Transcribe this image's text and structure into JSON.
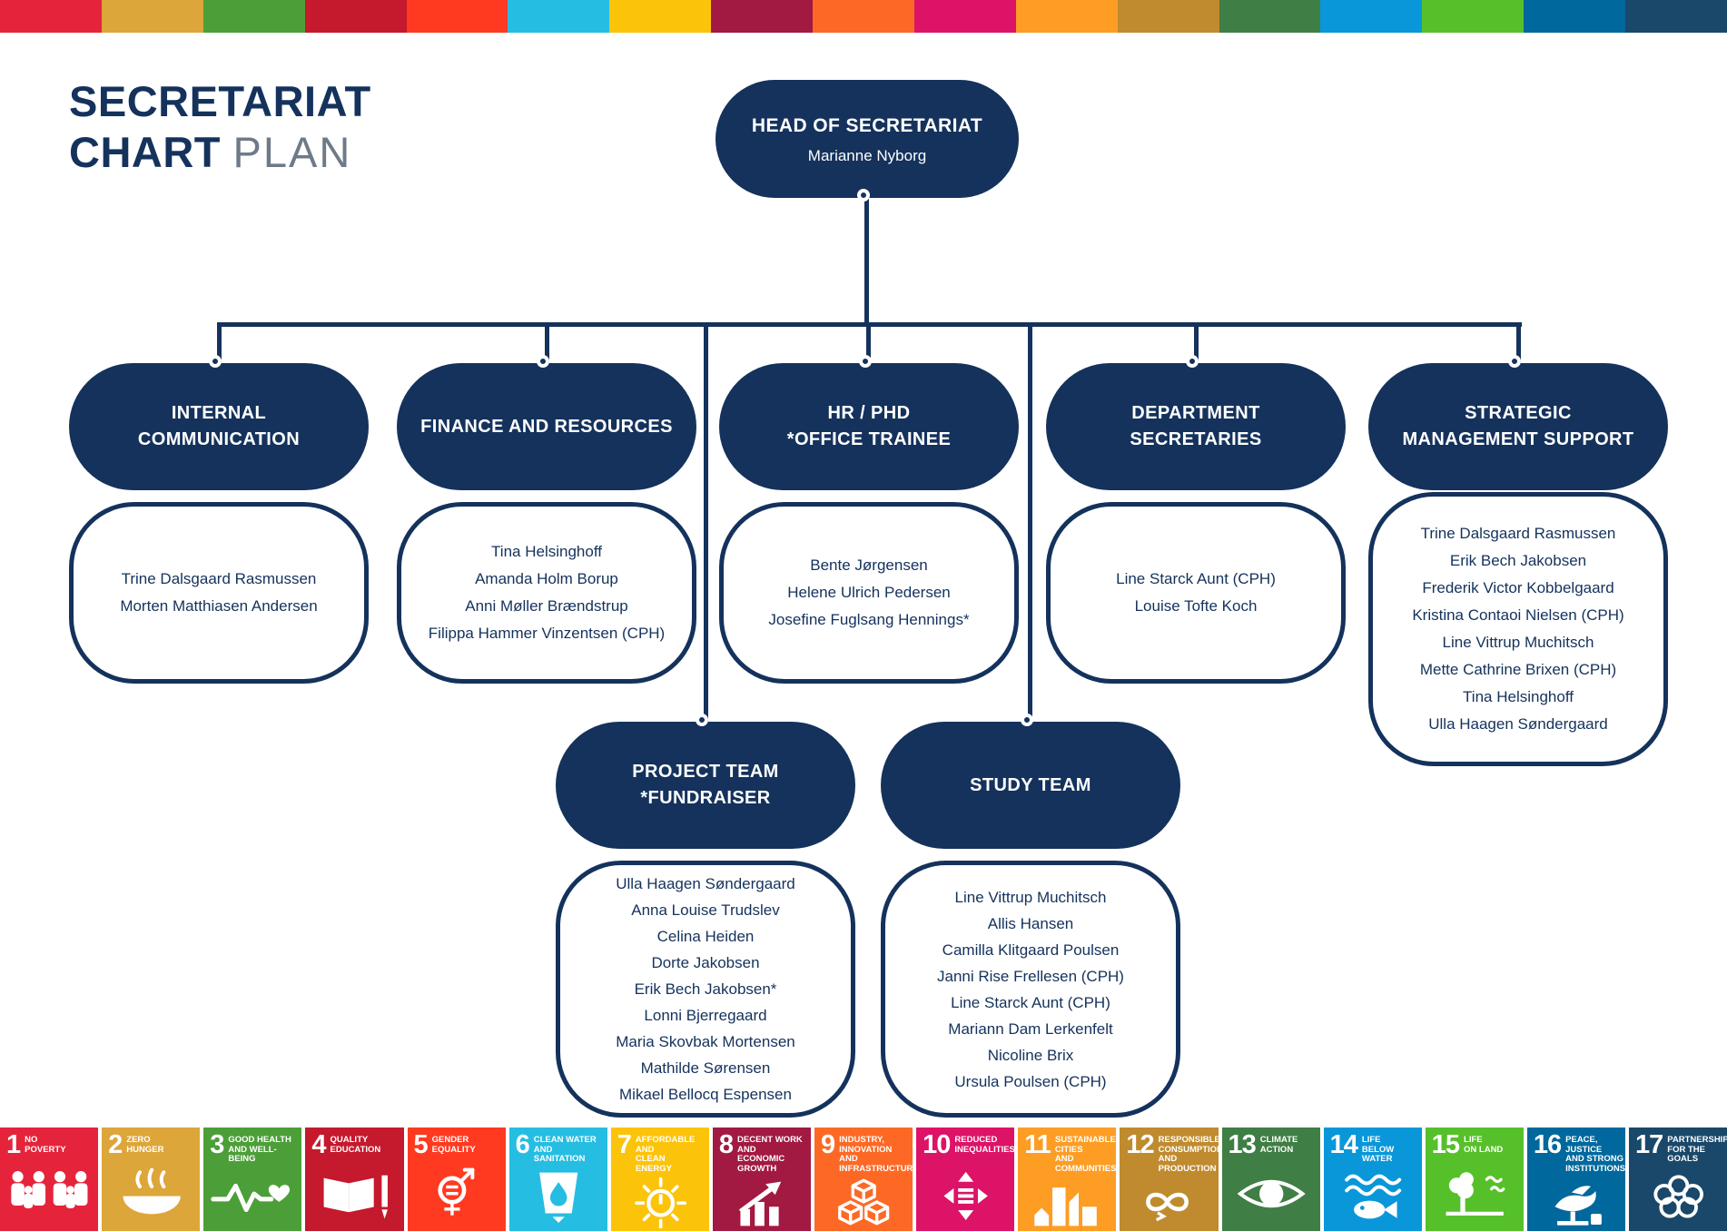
{
  "colors": {
    "navy": "#14325C",
    "title_light": "#6E7A87"
  },
  "title": {
    "strong_line1": "SECRETARIAT",
    "strong_line2": "CHART",
    "light": "PLAN"
  },
  "org": {
    "head": {
      "title": "HEAD OF SECRETARIAT",
      "name": "Marianne Nyborg"
    },
    "branches": [
      {
        "title": "INTERNAL\nCOMMUNICATION",
        "members": [
          "Trine Dalsgaard Rasmussen",
          "Morten Matthiasen Andersen"
        ]
      },
      {
        "title": "FINANCE AND RESOURCES",
        "members": [
          "Tina Helsinghoff",
          "Amanda Holm Borup",
          "Anni Møller Brændstrup",
          "Filippa Hammer Vinzentsen (CPH)"
        ]
      },
      {
        "title": "HR / PHD\n*OFFICE TRAINEE",
        "members": [
          "Bente Jørgensen",
          "Helene Ulrich Pedersen",
          "Josefine Fuglsang Hennings*"
        ]
      },
      {
        "title": "DEPARTMENT\nSECRETARIES",
        "members": [
          "Line Starck Aunt (CPH)",
          "Louise Tofte Koch"
        ]
      },
      {
        "title": "STRATEGIC\nMANAGEMENT SUPPORT",
        "members": [
          "Trine Dalsgaard Rasmussen",
          "Erik Bech Jakobsen",
          "Frederik Victor Kobbelgaard",
          "Kristina Contaoi Nielsen (CPH)",
          "Line Vittrup Muchitsch",
          "Mette Cathrine Brixen (CPH)",
          "Tina Helsinghoff",
          "Ulla Haagen Søndergaard"
        ]
      }
    ],
    "teams": [
      {
        "title": "PROJECT TEAM\n*FUNDRAISER",
        "members": [
          "Ulla Haagen Søndergaard",
          "Anna Louise Trudslev",
          "Celina Heiden",
          "Dorte Jakobsen",
          "Erik Bech Jakobsen*",
          "Lonni Bjerregaard",
          "Maria Skovbak Mortensen",
          "Mathilde Sørensen",
          "Mikael Bellocq Espensen"
        ]
      },
      {
        "title": "STUDY TEAM",
        "members": [
          "Line Vittrup Muchitsch",
          "Allis Hansen",
          "Camilla Klitgaard Poulsen",
          "Janni Rise Frellesen (CPH)",
          "Line Starck Aunt (CPH)",
          "Mariann Dam Lerkenfelt",
          "Nicoline Brix",
          "Ursula Poulsen (CPH)"
        ]
      }
    ]
  },
  "sdg_top_strip_colors": [
    "#E5243B",
    "#DDA63A",
    "#4C9F38",
    "#C5192D",
    "#FF3A21",
    "#26BDE2",
    "#FCC30B",
    "#A21942",
    "#FD6925",
    "#DD1367",
    "#FD9D24",
    "#BF8B2E",
    "#3F7E44",
    "#0A97D9",
    "#56C02B",
    "#00689D",
    "#19486A"
  ],
  "sdg_tiles": [
    {
      "number": "1",
      "label": "NO\nPOVERTY",
      "color": "#E5243B",
      "icon": "sdg-no-poverty-icon"
    },
    {
      "number": "2",
      "label": "ZERO\nHUNGER",
      "color": "#DDA63A",
      "icon": "sdg-zero-hunger-icon"
    },
    {
      "number": "3",
      "label": "GOOD HEALTH\nAND WELL-BEING",
      "color": "#4C9F38",
      "icon": "sdg-good-health-icon"
    },
    {
      "number": "4",
      "label": "QUALITY\nEDUCATION",
      "color": "#C5192D",
      "icon": "sdg-quality-education-icon"
    },
    {
      "number": "5",
      "label": "GENDER\nEQUALITY",
      "color": "#FF3A21",
      "icon": "sdg-gender-equality-icon"
    },
    {
      "number": "6",
      "label": "CLEAN WATER\nAND SANITATION",
      "color": "#26BDE2",
      "icon": "sdg-clean-water-icon"
    },
    {
      "number": "7",
      "label": "AFFORDABLE AND\nCLEAN ENERGY",
      "color": "#FCC30B",
      "icon": "sdg-clean-energy-icon"
    },
    {
      "number": "8",
      "label": "DECENT WORK AND\nECONOMIC GROWTH",
      "color": "#A21942",
      "icon": "sdg-decent-work-icon"
    },
    {
      "number": "9",
      "label": "INDUSTRY, INNOVATION\nAND INFRASTRUCTURE",
      "color": "#FD6925",
      "icon": "sdg-industry-innovation-icon"
    },
    {
      "number": "10",
      "label": "REDUCED\nINEQUALITIES",
      "color": "#DD1367",
      "icon": "sdg-reduced-inequalities-icon"
    },
    {
      "number": "11",
      "label": "SUSTAINABLE CITIES\nAND COMMUNITIES",
      "color": "#FD9D24",
      "icon": "sdg-sustainable-cities-icon"
    },
    {
      "number": "12",
      "label": "RESPONSIBLE\nCONSUMPTION\nAND PRODUCTION",
      "color": "#BF8B2E",
      "icon": "sdg-responsible-consumption-icon"
    },
    {
      "number": "13",
      "label": "CLIMATE\nACTION",
      "color": "#3F7E44",
      "icon": "sdg-climate-action-icon"
    },
    {
      "number": "14",
      "label": "LIFE\nBELOW WATER",
      "color": "#0A97D9",
      "icon": "sdg-life-below-water-icon"
    },
    {
      "number": "15",
      "label": "LIFE\nON LAND",
      "color": "#56C02B",
      "icon": "sdg-life-on-land-icon"
    },
    {
      "number": "16",
      "label": "PEACE, JUSTICE\nAND STRONG\nINSTITUTIONS",
      "color": "#00689D",
      "icon": "sdg-peace-justice-icon"
    },
    {
      "number": "17",
      "label": "PARTNERSHIPS\nFOR THE GOALS",
      "color": "#19486A",
      "icon": "sdg-partnerships-icon"
    }
  ]
}
